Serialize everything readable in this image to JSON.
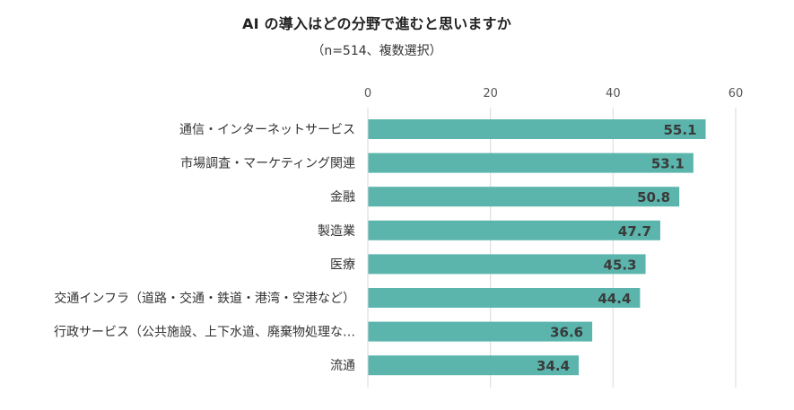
{
  "chart_data": {
    "type": "bar",
    "orientation": "horizontal",
    "title": "AI の導入はどの分野で進むと思いますか",
    "subtitle": "（n=514、複数選択）",
    "categories": [
      "通信・インターネットサービス",
      "市場調査・マーケティング関連",
      "金融",
      "製造業",
      "医療",
      "交通インフラ（道路・交通・鉄道・港湾・空港など）",
      "行政サービス（公共施設、上下水道、廃棄物処理な…",
      "流通"
    ],
    "values": [
      55.1,
      53.1,
      50.8,
      47.7,
      45.3,
      44.4,
      36.6,
      34.4
    ],
    "data_labels": [
      "55.1",
      "53.1",
      "50.8",
      "47.7",
      "45.3",
      "44.4",
      "36.6",
      "34.4"
    ],
    "xlim": [
      0,
      60
    ],
    "xticks": [
      0,
      20,
      40,
      60
    ],
    "xtick_labels": [
      "0",
      "20",
      "40",
      "60"
    ],
    "axis_position": "top",
    "grid": true,
    "legend": "none",
    "xlabel": "",
    "ylabel": "",
    "colors": {
      "bar": "#5bb5ad",
      "grid": "#d9d9d9",
      "title": "#222222",
      "label": "#333333",
      "data_label": "#3a3a3a"
    }
  }
}
